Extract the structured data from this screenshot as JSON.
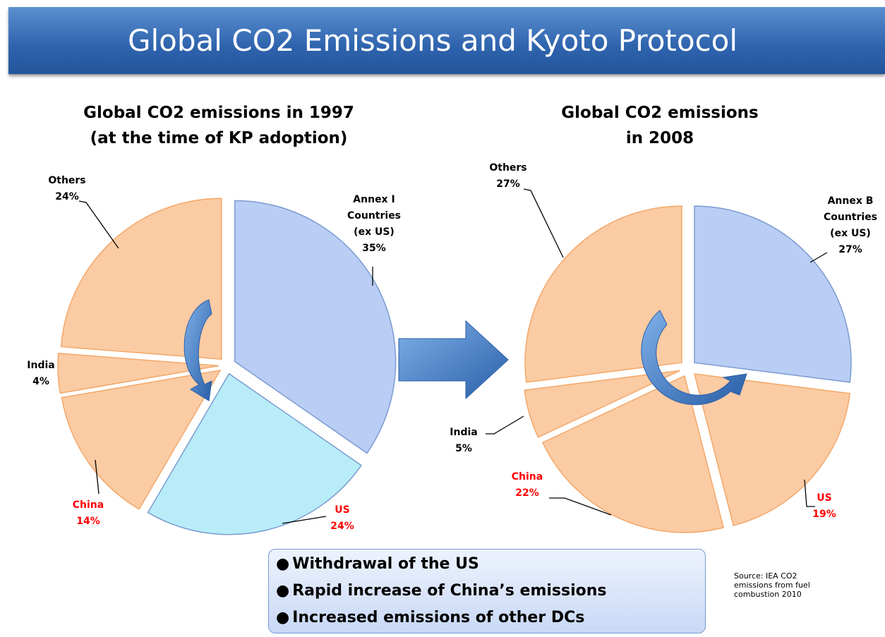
{
  "title": "Global CO2 Emissions and Kyoto Protocol",
  "chart_data": [
    {
      "type": "pie",
      "title": "Global CO2 emissions in 1997",
      "subtitle": "(at the time of KP adoption)",
      "categories": [
        "Annex I Countries (ex US)",
        "US",
        "China",
        "India",
        "Others"
      ],
      "values": [
        35,
        24,
        14,
        4,
        24
      ],
      "value_labels": [
        "35%",
        "24%",
        "14%",
        "4%",
        "24%"
      ],
      "colors": [
        "#b9cdf5",
        "#b8ecf9",
        "#fbcba3",
        "#fbcba3",
        "#fbcba3"
      ],
      "label_colors": [
        "#000000",
        "#ff0000",
        "#ff0000",
        "#000000",
        "#000000"
      ]
    },
    {
      "type": "pie",
      "title": "Global CO2 emissions",
      "subtitle": "in 2008",
      "categories": [
        "Annex B Countries (ex US)",
        "US",
        "China",
        "India",
        "Others"
      ],
      "values": [
        27,
        19,
        22,
        5,
        27
      ],
      "value_labels": [
        "27%",
        "19%",
        "22%",
        "5%",
        "27%"
      ],
      "colors": [
        "#b9cdf5",
        "#fbcba3",
        "#fbcba3",
        "#fbcba3",
        "#fbcba3"
      ],
      "label_colors": [
        "#000000",
        "#ff0000",
        "#ff0000",
        "#000000",
        "#000000"
      ]
    }
  ],
  "bullets": [
    "Withdrawal of the US",
    "Rapid increase of China’s emissions",
    "Increased emissions of other DCs"
  ],
  "source": "Source: IEA CO2 emissions from fuel combustion 2010"
}
